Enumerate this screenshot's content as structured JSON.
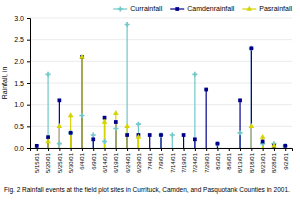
{
  "chart_data": {
    "type": "stem",
    "ylabel": "Rainfall, in",
    "caption": "Fig. 2  Rainfall events at the field plot sites in Currituck, Camden, and Pasquotank Counties in 2001.",
    "categories": [
      "5/15/01",
      "5/20/01",
      "5/25/01",
      "5/30/01",
      "6/4/01",
      "6/9/01",
      "6/14/01",
      "6/19/01",
      "6/24/01",
      "6/29/01",
      "7/4/01",
      "7/9/01",
      "7/14/01",
      "7/19/01",
      "7/24/01",
      "7/29/01",
      "8/3/01",
      "8/6/01",
      "8/13/01",
      "8/18/01",
      "8/23/01",
      "8/28/01",
      "9/2/01"
    ],
    "series": [
      {
        "name": "Currainfall",
        "color": "#70c8c8",
        "marker": "plus",
        "values": [
          0.0,
          1.7,
          0.1,
          0.35,
          0.75,
          0.3,
          0.15,
          0.45,
          2.85,
          0.55,
          0.0,
          0.3,
          0.3,
          0.0,
          1.7,
          0.0,
          0.1,
          0.0,
          0.35,
          2.3,
          0.1,
          0.1,
          0.05
        ]
      },
      {
        "name": "Camdenrainfall",
        "color": "#00008b",
        "marker": "square",
        "values": [
          0.05,
          0.25,
          1.1,
          0.35,
          2.1,
          0.2,
          0.7,
          0.6,
          0.3,
          0.3,
          0.3,
          0.3,
          0.0,
          0.3,
          0.2,
          1.35,
          0.1,
          0.0,
          1.1,
          2.3,
          0.15,
          0.05,
          0.05
        ]
      },
      {
        "name": "Pasrainfall",
        "color": "#d4d400",
        "marker": "triangle",
        "values": [
          0.0,
          0.15,
          0.5,
          0.75,
          2.1,
          0.0,
          0.6,
          0.8,
          0.5,
          0.25,
          0.0,
          0.0,
          0.0,
          0.0,
          0.0,
          0.0,
          0.0,
          0.0,
          0.0,
          0.5,
          0.25,
          0.05,
          0.0
        ]
      }
    ],
    "ylim": [
      0,
      3
    ],
    "yticks": [
      {
        "value": 0,
        "label": "0.0"
      },
      {
        "value": 0.5,
        "label": "0.5"
      },
      {
        "value": 1,
        "label": "1.0"
      },
      {
        "value": 1.5,
        "label": "1.5"
      },
      {
        "value": 2,
        "label": "2.0"
      },
      {
        "value": 2.5,
        "label": "2.5"
      },
      {
        "value": 3,
        "label": "3.0"
      }
    ],
    "grid": true,
    "legend": "upper right"
  }
}
